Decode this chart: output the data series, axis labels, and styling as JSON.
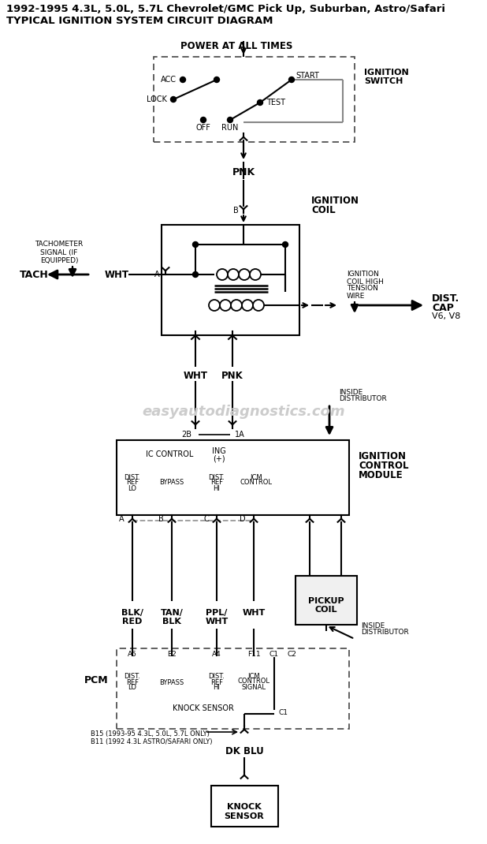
{
  "title_line1": "1992-1995 4.3L, 5.0L, 5.7L Chevrolet/GMC Pick Up, Suburban, Astro/Safari",
  "title_line2": "TYPICAL IGNITION SYSTEM CIRCUIT DIAGRAM",
  "watermark": "easyautodiagnostics.com",
  "bg_color": "#ffffff",
  "line_color": "#000000",
  "fig_width": 6.18,
  "fig_height": 10.7,
  "dpi": 100
}
